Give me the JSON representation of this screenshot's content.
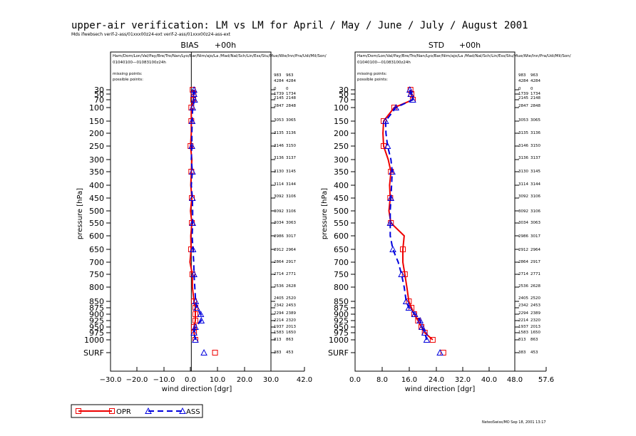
{
  "title": "upper-air verification: LM vs LM for April / May / June / July / August 2001",
  "files": "Mds ifwebsech  verif-2-ass/01xxx00z24-ext verif-2-ass/01xxx00z24-ass-ext",
  "footer": "NeteoSwiss/MO Sep 18, 2001 13:17",
  "legend": {
    "opr": "OPR",
    "ass": "ASS"
  },
  "colors": {
    "opr": "#ee0000",
    "ass": "#0000dd",
    "axis": "#000000"
  },
  "station_list": "Ham/Dom/Lon/Val/Pay/Bre/Tro/Nan/Lyo/Bar/Nim/ajo/La /Mad/Nal/Sch/Lin/Ess/Stu/Mue/Wie/Inn/Pra/Udi/Mil/Son/",
  "period": "01040100—01083100z24h",
  "missing_label": "missing points:",
  "possible_label": "possible points:",
  "levels": [
    "30",
    "50",
    "70",
    "100",
    "150",
    "200",
    "250",
    "300",
    "350",
    "400",
    "450",
    "500",
    "550",
    "600",
    "650",
    "700",
    "750",
    "800",
    "850",
    "875",
    "900",
    "925",
    "950",
    "975",
    "1000",
    "SURF"
  ],
  "counts": [
    {
      "opr": "983",
      "ass": "963"
    },
    {
      "opr": "4284",
      "ass": "4284"
    },
    {
      "opr": "0",
      "ass": "0"
    },
    {
      "opr": "1739",
      "ass": "1734"
    },
    {
      "opr": "2145",
      "ass": "2148"
    },
    {
      "opr": "2847",
      "ass": "2848"
    },
    {
      "opr": "3053",
      "ass": "3065"
    },
    {
      "opr": "3135",
      "ass": "3136"
    },
    {
      "opr": "3146",
      "ass": "3150"
    },
    {
      "opr": "3136",
      "ass": "3137"
    },
    {
      "opr": "3130",
      "ass": "3145"
    },
    {
      "opr": "3114",
      "ass": "3144"
    },
    {
      "opr": "3092",
      "ass": "3106"
    },
    {
      "opr": "3092",
      "ass": "3106"
    },
    {
      "opr": "3034",
      "ass": "3063"
    },
    {
      "opr": "2986",
      "ass": "3017"
    },
    {
      "opr": "2912",
      "ass": "2964"
    },
    {
      "opr": "2864",
      "ass": "2917"
    },
    {
      "opr": "2714",
      "ass": "2771"
    },
    {
      "opr": "2536",
      "ass": "2628"
    },
    {
      "opr": "2405",
      "ass": "2520"
    },
    {
      "opr": "2342",
      "ass": "2453"
    },
    {
      "opr": "2294",
      "ass": "2389"
    },
    {
      "opr": "2214",
      "ass": "2320"
    },
    {
      "opr": "1937",
      "ass": "2013"
    },
    {
      "opr": "1583",
      "ass": "1650"
    },
    {
      "opr": "813",
      "ass": "863"
    },
    {
      "opr": "383",
      "ass": "453"
    }
  ],
  "chart_data": [
    {
      "type": "line",
      "title": "BIAS",
      "subtitle": "+00h",
      "xlabel": "wind direction  [dgr]",
      "ylabel": "pressure [hPa]",
      "xticks": [
        "−30.0",
        "−20.0",
        "−10.0",
        "0.0",
        "10.0",
        "20.0",
        "30.0",
        "42.0"
      ],
      "xlim": [
        -30,
        42
      ],
      "categories": [
        "30",
        "50",
        "70",
        "100",
        "150",
        "200",
        "250",
        "300",
        "350",
        "400",
        "450",
        "500",
        "550",
        "600",
        "650",
        "700",
        "750",
        "800",
        "850",
        "875",
        "900",
        "925",
        "950",
        "975",
        "1000",
        "SURF"
      ],
      "series": [
        {
          "name": "OPR",
          "values": [
            0.5,
            0.8,
            0.7,
            0.0,
            0.0,
            0.0,
            -0.3,
            0.2,
            0.0,
            -0.2,
            0.2,
            -0.3,
            0.2,
            -0.2,
            -0.1,
            -0.5,
            0.4,
            0.4,
            1.0,
            1.5,
            1.5,
            1.5,
            1.0,
            1.0,
            1.5,
            8.8
          ]
        },
        {
          "name": "ASS",
          "values": [
            1.0,
            1.0,
            1.2,
            0.5,
            0.3,
            0.2,
            0.2,
            0.0,
            0.4,
            0.0,
            0.4,
            0.5,
            0.5,
            0.3,
            0.6,
            0.9,
            1.0,
            1.3,
            1.6,
            2.0,
            3.5,
            3.7,
            1.5,
            1.0,
            1.5,
            4.7
          ]
        }
      ]
    },
    {
      "type": "line",
      "title": "STD",
      "subtitle": "+00h",
      "xlabel": "wind direction  [dgr]",
      "ylabel": "pressure [hPa]",
      "xticks": [
        "0.0",
        "8.0",
        "16.0",
        "24.0",
        "32.0",
        "40.0",
        "48.0",
        "57.6"
      ],
      "xlim": [
        0,
        57.6
      ],
      "categories": [
        "30",
        "50",
        "70",
        "100",
        "150",
        "200",
        "250",
        "300",
        "350",
        "400",
        "450",
        "500",
        "550",
        "600",
        "650",
        "700",
        "750",
        "800",
        "850",
        "875",
        "900",
        "925",
        "950",
        "975",
        "1000",
        "SURF"
      ],
      "series": [
        {
          "name": "OPR",
          "values": [
            16.7,
            17.0,
            17.4,
            11.8,
            8.6,
            8.4,
            8.6,
            10.0,
            10.8,
            10.4,
            10.6,
            10.2,
            10.8,
            14.8,
            14.4,
            14.4,
            15.0,
            15.6,
            16.2,
            17.0,
            17.8,
            19.0,
            20.0,
            21.0,
            23.4,
            26.6
          ]
        },
        {
          "name": "ASS",
          "values": [
            16.5,
            16.8,
            17.4,
            12.3,
            9.2,
            9.3,
            9.8,
            10.8,
            11.2,
            11.0,
            10.8,
            10.6,
            10.6,
            10.6,
            11.4,
            13.0,
            14.0,
            14.8,
            15.4,
            16.2,
            18.0,
            19.6,
            20.2,
            21.0,
            21.6,
            25.6
          ]
        }
      ]
    }
  ]
}
